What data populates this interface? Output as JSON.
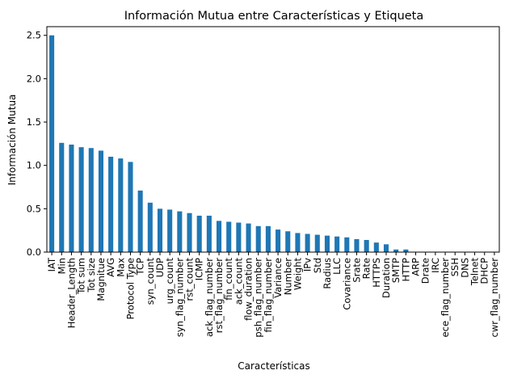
{
  "chart_data": {
    "type": "bar",
    "title": "Información Mutua entre Características y Etiqueta",
    "xlabel": "Características",
    "ylabel": "Información Mutua",
    "ylim": [
      0,
      2.6
    ],
    "yticks": [
      0.0,
      0.5,
      1.0,
      1.5,
      2.0,
      2.5
    ],
    "ytick_labels": [
      "0.0",
      "0.5",
      "1.0",
      "1.5",
      "2.0",
      "2.5"
    ],
    "grid": false,
    "bar_color": "#1f77b4",
    "categories": [
      "IAT",
      "Min",
      "Header_Length",
      "Tot sum",
      "Tot size",
      "Magnitue",
      "AVG",
      "Max",
      "Protocol Type",
      "TCP",
      "syn_count",
      "UDP",
      "urg_count",
      "syn_flag_number",
      "rst_count",
      "ICMP",
      "ack_flag_number",
      "rst_flag_number",
      "fin_count",
      "ack_count",
      "flow_duration",
      "psh_flag_number",
      "fin_flag_number",
      "Variance",
      "Number",
      "Weight",
      "IPv",
      "Std",
      "Radius",
      "LLC",
      "Covariance",
      "Srate",
      "Rate",
      "HTTPS",
      "Duration",
      "SMTP",
      "HTTP",
      "ARP",
      "Drate",
      "IRC",
      "ece_flag_number",
      "SSH",
      "DNS",
      "Telnet",
      "DHCP",
      "cwr_flag_number"
    ],
    "values": [
      2.5,
      1.26,
      1.24,
      1.21,
      1.2,
      1.17,
      1.1,
      1.08,
      1.04,
      0.71,
      0.57,
      0.5,
      0.49,
      0.47,
      0.45,
      0.42,
      0.42,
      0.36,
      0.35,
      0.34,
      0.33,
      0.3,
      0.3,
      0.26,
      0.24,
      0.22,
      0.21,
      0.2,
      0.19,
      0.18,
      0.17,
      0.15,
      0.14,
      0.11,
      0.09,
      0.03,
      0.03,
      0.0,
      0.0,
      0.0,
      0.0,
      0.0,
      0.0,
      0.0,
      0.0,
      0.0
    ]
  }
}
